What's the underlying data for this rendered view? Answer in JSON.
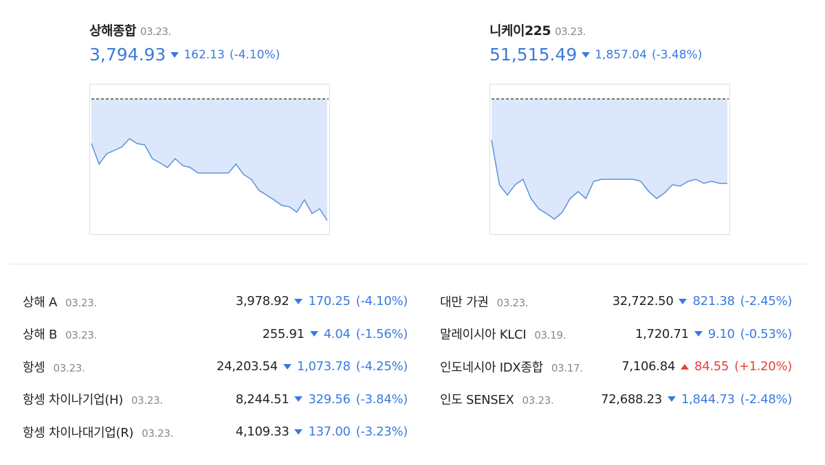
{
  "panels": [
    {
      "name": "상해종합",
      "date": "03.23.",
      "price": "3,794.93",
      "change": "162.13",
      "pct": "(-4.10%)",
      "direction": "down",
      "chart": {
        "type": "area",
        "reference": 3957.06,
        "ylim": [
          3775.7,
          3977.2
        ],
        "color": "#5b8fe0",
        "fill": "#dce7fb",
        "values": [
          3897.5,
          3870.0,
          3883.8,
          3888.4,
          3893.0,
          3903.9,
          3897.5,
          3895.7,
          3877.4,
          3871.9,
          3865.5,
          3877.4,
          3868.2,
          3865.5,
          3858.2,
          3858.2,
          3858.2,
          3858.2,
          3858.2,
          3870.0,
          3856.3,
          3849.9,
          3835.3,
          3828.9,
          3822.4,
          3815.1,
          3813.3,
          3806.0,
          3822.4,
          3804.1,
          3810.5,
          3794.93
        ]
      }
    },
    {
      "name": "니케이225",
      "date": "03.23.",
      "price": "51,515.49",
      "change": "1,857.04",
      "pct": "(-3.48%)",
      "direction": "down",
      "chart": {
        "type": "area",
        "reference": 53372.53,
        "ylim": [
          50382.7,
          53704.7
        ],
        "color": "#5b8fe0",
        "fill": "#dce7fb",
        "values": [
          52466.5,
          51485.0,
          51258.5,
          51485.0,
          51605.8,
          51183.0,
          50956.5,
          50850.8,
          50730.0,
          50881.0,
          51183.0,
          51334.0,
          51183.0,
          51560.5,
          51605.8,
          51605.8,
          51605.8,
          51605.8,
          51605.8,
          51560.5,
          51334.0,
          51183.0,
          51303.8,
          51485.0,
          51454.8,
          51560.5,
          51605.8,
          51515.49,
          51560.5,
          51515.49,
          51515.49
        ]
      }
    }
  ],
  "table": {
    "columns": [
      [
        {
          "name": "상해 A",
          "date": "03.23.",
          "price": "3,978.92",
          "change": "170.25",
          "pct": "(-4.10%)",
          "direction": "down"
        },
        {
          "name": "상해 B",
          "date": "03.23.",
          "price": "255.91",
          "change": "4.04",
          "pct": "(-1.56%)",
          "direction": "down"
        },
        {
          "name": "항셍",
          "date": "03.23.",
          "price": "24,203.54",
          "change": "1,073.78",
          "pct": "(-4.25%)",
          "direction": "down"
        },
        {
          "name": "항셍 차이나기업(H)",
          "date": "03.23.",
          "price": "8,244.51",
          "change": "329.56",
          "pct": "(-3.84%)",
          "direction": "down"
        },
        {
          "name": "항셍 차이나대기업(R)",
          "date": "03.23.",
          "price": "4,109.33",
          "change": "137.00",
          "pct": "(-3.23%)",
          "direction": "down"
        }
      ],
      [
        {
          "name": "대만 가권",
          "date": "03.23.",
          "price": "32,722.50",
          "change": "821.38",
          "pct": "(-2.45%)",
          "direction": "down"
        },
        {
          "name": "말레이시아 KLCI",
          "date": "03.19.",
          "price": "1,720.71",
          "change": "9.10",
          "pct": "(-0.53%)",
          "direction": "down"
        },
        {
          "name": "인도네시아 IDX종합",
          "date": "03.17.",
          "price": "7,106.84",
          "change": "84.55",
          "pct": "(+1.20%)",
          "direction": "up"
        },
        {
          "name": "인도 SENSEX",
          "date": "03.23.",
          "price": "72,688.23",
          "change": "1,844.73",
          "pct": "(-2.48%)",
          "direction": "down"
        }
      ]
    ]
  }
}
